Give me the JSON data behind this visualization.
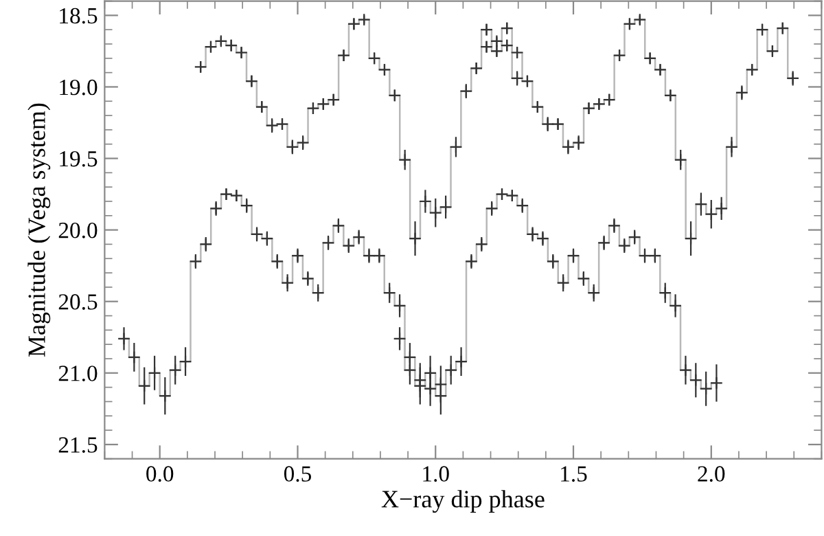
{
  "chart_data": {
    "type": "step",
    "xlabel": "X−ray dip phase",
    "ylabel": "Magnitude (Vega system)",
    "xlim": [
      -0.2,
      2.4
    ],
    "ylim": [
      21.6,
      18.4
    ],
    "xticks": [
      {
        "value": 0,
        "label": "0.0"
      },
      0.5,
      {
        "value": 1,
        "label": "1.0"
      },
      1.5,
      {
        "value": 2,
        "label": "2.0"
      }
    ],
    "yticks": [
      18.5,
      {
        "value": 19,
        "label": "19.0"
      },
      19.5,
      {
        "value": 20,
        "label": "20.0"
      },
      20.5,
      {
        "value": 21,
        "label": "21.0"
      },
      21.5
    ],
    "grid": false,
    "legend": false,
    "marker": "cross",
    "line_style": "solid",
    "series": [
      {
        "color": "#333333",
        "x": [
          0.148,
          0.185,
          0.222,
          0.259,
          0.296,
          0.333,
          0.37,
          0.407,
          0.444,
          0.481,
          0.519,
          0.556,
          0.593,
          0.63,
          0.667,
          0.704,
          0.741,
          0.778,
          0.815,
          0.852,
          0.889,
          0.926,
          0.963,
          1.0,
          1.037,
          1.074,
          1.111,
          1.148,
          1.185,
          1.222,
          1.259,
          1.296
        ],
        "values": [
          18.86,
          18.72,
          18.68,
          18.71,
          18.76,
          18.96,
          19.14,
          19.27,
          19.26,
          19.42,
          19.39,
          19.15,
          19.12,
          19.09,
          18.78,
          18.56,
          18.53,
          18.8,
          18.88,
          19.06,
          19.51,
          20.06,
          19.8,
          19.88,
          19.84,
          19.42,
          19.03,
          18.87,
          18.6,
          18.75,
          18.59,
          18.94
        ],
        "errors": [
          0.04,
          0.04,
          0.03,
          0.04,
          0.04,
          0.04,
          0.04,
          0.05,
          0.04,
          0.05,
          0.05,
          0.04,
          0.04,
          0.04,
          0.04,
          0.04,
          0.03,
          0.04,
          0.04,
          0.04,
          0.07,
          0.12,
          0.08,
          0.1,
          0.08,
          0.07,
          0.05,
          0.04,
          0.04,
          0.04,
          0.04,
          0.05
        ]
      },
      {
        "color": "#333333",
        "x": [
          1.185,
          1.222,
          1.259,
          1.296,
          1.333,
          1.37,
          1.407,
          1.444,
          1.481,
          1.519,
          1.556,
          1.593,
          1.63,
          1.667,
          1.704,
          1.741,
          1.778,
          1.815,
          1.852,
          1.889,
          1.926,
          1.963,
          2.0,
          2.037,
          2.074,
          2.111,
          2.148,
          2.185,
          2.222,
          2.259,
          2.296
        ],
        "values": [
          18.72,
          18.68,
          18.71,
          18.76,
          18.96,
          19.14,
          19.26,
          19.26,
          19.42,
          19.39,
          19.15,
          19.12,
          19.09,
          18.78,
          18.56,
          18.53,
          18.8,
          18.88,
          19.06,
          19.51,
          20.06,
          19.82,
          19.89,
          19.85,
          19.42,
          19.04,
          18.88,
          18.6,
          18.75,
          18.59,
          18.94
        ],
        "errors": [
          0.04,
          0.03,
          0.04,
          0.04,
          0.04,
          0.04,
          0.05,
          0.04,
          0.05,
          0.05,
          0.04,
          0.04,
          0.04,
          0.04,
          0.04,
          0.03,
          0.04,
          0.04,
          0.04,
          0.07,
          0.12,
          0.08,
          0.1,
          0.08,
          0.07,
          0.05,
          0.04,
          0.04,
          0.04,
          0.04,
          0.05
        ]
      },
      {
        "color": "#333333",
        "x": [
          -0.13,
          -0.093,
          -0.056,
          -0.019,
          0.019,
          0.056,
          0.093,
          0.13,
          0.167,
          0.204,
          0.241,
          0.278,
          0.315,
          0.352,
          0.389,
          0.426,
          0.463,
          0.5,
          0.537,
          0.574,
          0.611,
          0.648,
          0.685,
          0.722,
          0.759,
          0.796,
          0.833,
          0.87,
          0.907,
          0.944,
          0.981,
          1.019
        ],
        "values": [
          20.76,
          20.89,
          21.09,
          21.0,
          21.16,
          20.98,
          20.92,
          20.22,
          20.1,
          19.85,
          19.75,
          19.76,
          19.83,
          20.03,
          20.06,
          20.22,
          20.37,
          20.18,
          20.34,
          20.44,
          20.09,
          19.97,
          20.11,
          20.05,
          20.18,
          20.18,
          20.44,
          20.53,
          20.98,
          21.05,
          21.11,
          21.08
        ],
        "errors": [
          0.08,
          0.1,
          0.13,
          0.12,
          0.13,
          0.1,
          0.1,
          0.05,
          0.05,
          0.05,
          0.04,
          0.04,
          0.05,
          0.05,
          0.05,
          0.05,
          0.06,
          0.05,
          0.05,
          0.06,
          0.05,
          0.05,
          0.05,
          0.05,
          0.05,
          0.05,
          0.07,
          0.08,
          0.1,
          0.12,
          0.12,
          0.13
        ]
      },
      {
        "color": "#333333",
        "x": [
          0.87,
          0.907,
          0.944,
          0.981,
          1.019,
          1.056,
          1.093,
          1.13,
          1.167,
          1.204,
          1.241,
          1.278,
          1.315,
          1.352,
          1.389,
          1.426,
          1.463,
          1.5,
          1.537,
          1.574,
          1.611,
          1.648,
          1.685,
          1.722,
          1.759,
          1.796,
          1.833,
          1.87,
          1.907,
          1.944,
          1.981,
          2.019
        ],
        "values": [
          20.76,
          20.89,
          21.09,
          21.0,
          21.16,
          20.98,
          20.92,
          20.22,
          20.1,
          19.85,
          19.75,
          19.76,
          19.83,
          20.03,
          20.06,
          20.22,
          20.37,
          20.18,
          20.34,
          20.44,
          20.09,
          19.97,
          20.11,
          20.05,
          20.18,
          20.18,
          20.44,
          20.53,
          20.98,
          21.05,
          21.11,
          21.07
        ],
        "errors": [
          0.08,
          0.1,
          0.13,
          0.12,
          0.13,
          0.1,
          0.1,
          0.05,
          0.05,
          0.05,
          0.04,
          0.04,
          0.05,
          0.05,
          0.05,
          0.05,
          0.06,
          0.05,
          0.05,
          0.06,
          0.05,
          0.05,
          0.05,
          0.05,
          0.05,
          0.05,
          0.07,
          0.08,
          0.1,
          0.12,
          0.12,
          0.13
        ]
      }
    ]
  }
}
